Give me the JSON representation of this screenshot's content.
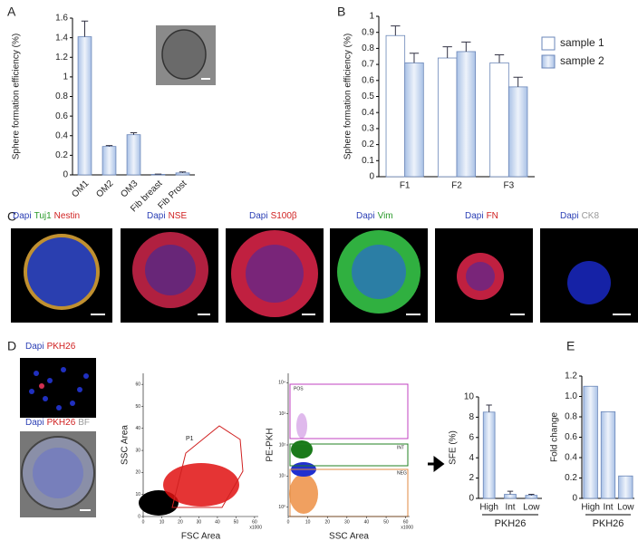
{
  "panel_labels": [
    "A",
    "B",
    "C",
    "D",
    "E"
  ],
  "chart_data": [
    {
      "type": "bar",
      "ylabel": "Sphere formation efficiency (%)",
      "categories": [
        "OM1",
        "OM2",
        "OM3",
        "Fib breast",
        "Fib Prost"
      ],
      "values": [
        1.41,
        0.29,
        0.41,
        0.005,
        0.02
      ],
      "errors": [
        0.16,
        0.01,
        0.02,
        0.003,
        0.01
      ],
      "color": "#a9c1e6",
      "ylim": [
        0,
        1.6
      ],
      "yticks": [
        0,
        0.2,
        0.4,
        0.6,
        0.8,
        1,
        1.2,
        1.4,
        1.6
      ]
    },
    {
      "type": "bar",
      "ylabel": "Sphere formation efficiency (%)",
      "categories": [
        "F1",
        "F2",
        "F3"
      ],
      "series": [
        {
          "name": "sample 1",
          "color": "#ffffff",
          "values": [
            0.88,
            0.74,
            0.71
          ],
          "errors": [
            0.06,
            0.07,
            0.05
          ]
        },
        {
          "name": "sample 2",
          "color": "#a9c1e6",
          "values": [
            0.71,
            0.78,
            0.56
          ],
          "errors": [
            0.06,
            0.06,
            0.06
          ]
        }
      ],
      "ylim": [
        0,
        1
      ],
      "yticks": [
        0,
        0.1,
        0.2,
        0.3,
        0.4,
        0.5,
        0.6,
        0.7,
        0.8,
        0.9,
        1
      ],
      "legend": "upper right"
    },
    {
      "type": "bar",
      "ylabel": "SFE (%)",
      "xlabel": "PKH26",
      "categories": [
        "High",
        "Int",
        "Low"
      ],
      "values": [
        8.5,
        0.4,
        0.3
      ],
      "errors": [
        0.7,
        0.3,
        0.1
      ],
      "color": "#a9c1e6",
      "ylim": [
        0,
        10
      ],
      "yticks": [
        0,
        2,
        4,
        6,
        8,
        10
      ]
    },
    {
      "type": "bar",
      "ylabel": "Fold change",
      "xlabel": "PKH26",
      "categories": [
        "High",
        "Int",
        "Low"
      ],
      "values": [
        1.1,
        0.85,
        0.22
      ],
      "color": "#a9c1e6",
      "ylim": [
        0,
        1.2
      ],
      "yticks": [
        0,
        0.2,
        0.4,
        0.6,
        0.8,
        {
          "value": 1,
          "label": "1.0"
        },
        1.2
      ]
    }
  ],
  "images": {
    "captions": [
      [
        {
          "text": "Dapi",
          "color": "#2b3fb5"
        },
        {
          "text": "Tuj1",
          "color": "#2a9a2a"
        },
        {
          "text": "Nestin",
          "color": "#d02020"
        }
      ],
      [
        {
          "text": "Dapi",
          "color": "#2b3fb5"
        },
        {
          "text": "NSE",
          "color": "#d02020"
        }
      ],
      [
        {
          "text": "Dapi",
          "color": "#2b3fb5"
        },
        {
          "text": "S100β",
          "color": "#d02020"
        }
      ],
      [
        {
          "text": "Dapi",
          "color": "#2b3fb5"
        },
        {
          "text": "Vim",
          "color": "#2a9a2a"
        }
      ],
      [
        {
          "text": "Dapi",
          "color": "#2b3fb5"
        },
        {
          "text": "FN",
          "color": "#d02020"
        }
      ],
      [
        {
          "text": "Dapi",
          "color": "#2b3fb5"
        },
        {
          "text": "CK8",
          "color": "#999999"
        }
      ]
    ],
    "d_captions": [
      [
        {
          "text": "Dapi",
          "color": "#2b3fb5"
        },
        {
          "text": "PKH26",
          "color": "#d02020"
        }
      ],
      [
        {
          "text": "Dapi",
          "color": "#2b3fb5"
        },
        {
          "text": "PKH26",
          "color": "#d02020"
        },
        {
          "text": "BF",
          "color": "#999999"
        }
      ]
    ]
  },
  "flow": [
    {
      "xlabel": "FSC Area",
      "ylabel": "SSC Area",
      "unit": "x1000",
      "gates": [
        "P1"
      ],
      "xlim": [
        0,
        62
      ],
      "ylim": [
        0,
        65
      ],
      "xticks": [
        0,
        10,
        20,
        30,
        40,
        50,
        60
      ],
      "yticks": [
        0,
        10,
        20,
        30,
        40,
        50,
        60
      ]
    },
    {
      "xlabel": "SSC Area",
      "ylabel": "PE-PKH",
      "unit": "x1000",
      "gates": [
        "POS",
        "INT",
        "NEG"
      ],
      "xlim": [
        0,
        62
      ],
      "ylim": [
        0.5,
        20000
      ],
      "log": true,
      "xticks": [
        0,
        10,
        20,
        30,
        40,
        50,
        60
      ],
      "yticks": [
        {
          "value": 1,
          "label": "10⁰"
        },
        {
          "value": 10,
          "label": "10¹"
        },
        {
          "value": 100,
          "label": "10²"
        },
        {
          "value": 1000,
          "label": "10³"
        },
        {
          "value": 10000,
          "label": "10⁴"
        }
      ]
    }
  ]
}
